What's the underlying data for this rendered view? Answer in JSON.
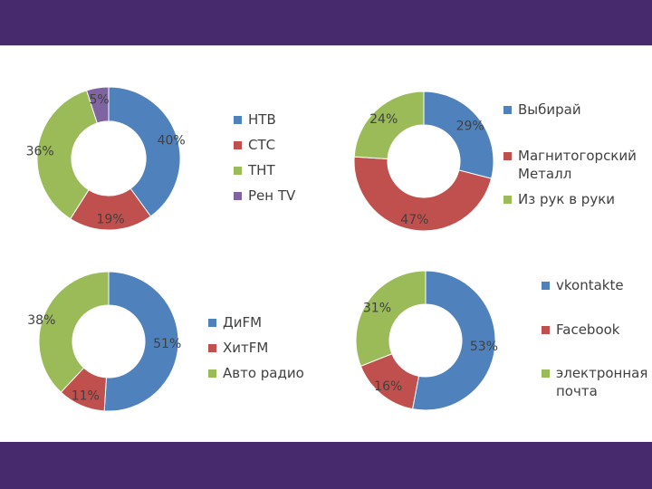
{
  "chart_data": [
    {
      "type": "pie",
      "style": "donut",
      "categories": [
        "НТВ",
        "СТС",
        "ТНТ",
        "Рен TV"
      ],
      "values": [
        40,
        19,
        36,
        5
      ],
      "labels": [
        "40%",
        "19%",
        "36%",
        "5%"
      ],
      "colors": [
        "#4f81bd",
        "#c0504d",
        "#9bbb59",
        "#8064a2"
      ],
      "legend_position": "right"
    },
    {
      "type": "pie",
      "style": "donut",
      "categories": [
        "Выбирай",
        "Магнитогорский Металл",
        "Из рук в руки"
      ],
      "values": [
        29,
        47,
        24
      ],
      "labels": [
        "29%",
        "47%",
        "24%"
      ],
      "colors": [
        "#4f81bd",
        "#c0504d",
        "#9bbb59"
      ],
      "legend_position": "right"
    },
    {
      "type": "pie",
      "style": "donut",
      "categories": [
        "ДиFM",
        "ХитFM",
        "Авто радио"
      ],
      "values": [
        51,
        11,
        38
      ],
      "labels": [
        "51%",
        "11%",
        "38%"
      ],
      "colors": [
        "#4f81bd",
        "#c0504d",
        "#9bbb59"
      ],
      "legend_position": "right"
    },
    {
      "type": "pie",
      "style": "donut",
      "categories": [
        "vkontakte",
        "Facebook",
        "электронная почта"
      ],
      "values": [
        53,
        16,
        31
      ],
      "labels": [
        "53%",
        "16%",
        "31%"
      ],
      "colors": [
        "#4f81bd",
        "#c0504d",
        "#9bbb59"
      ],
      "legend_position": "right"
    }
  ]
}
